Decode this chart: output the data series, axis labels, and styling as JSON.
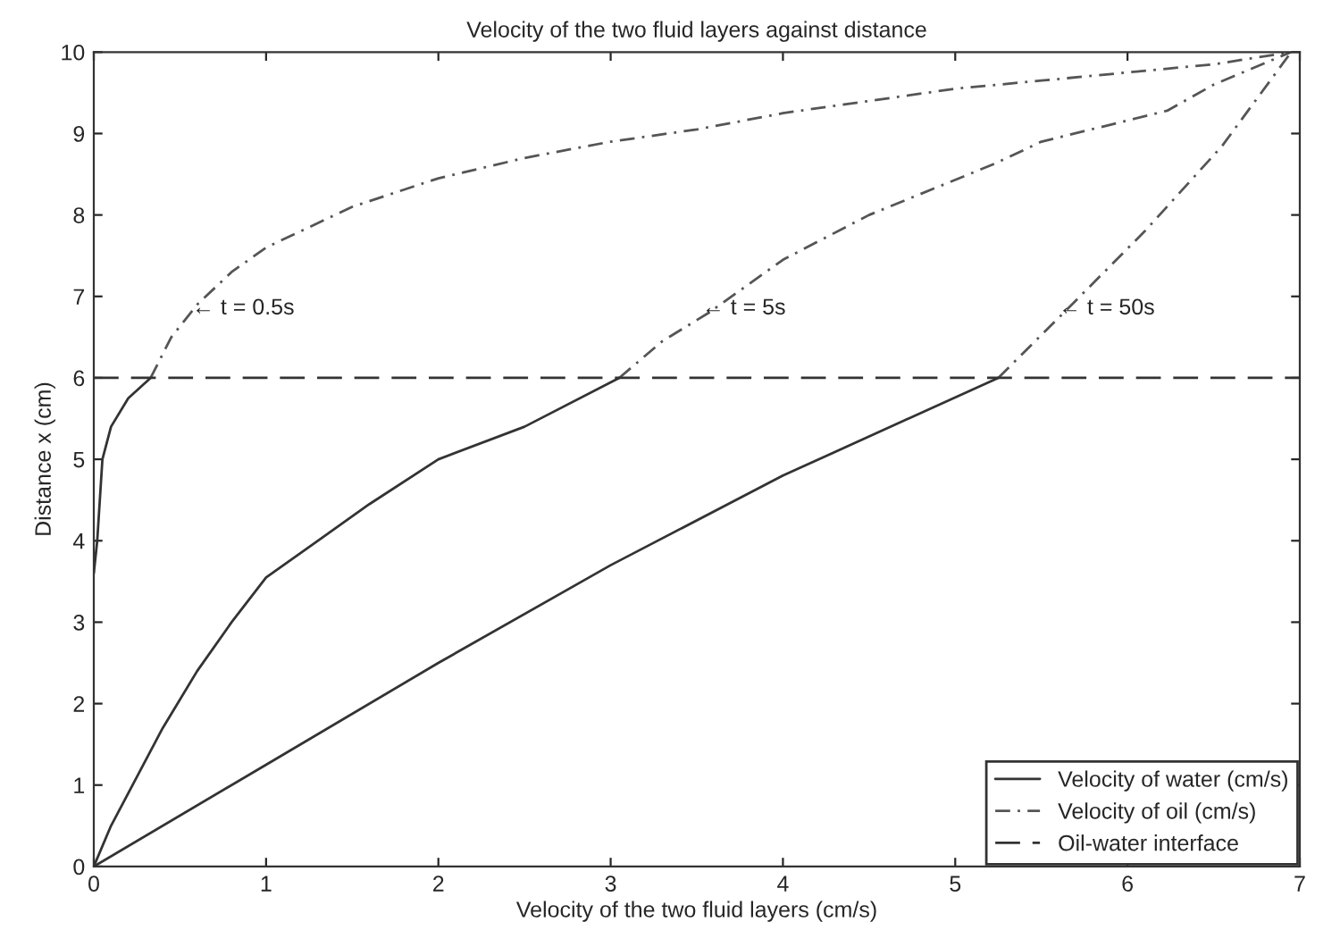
{
  "chart_data": {
    "type": "line",
    "title": "Velocity of the two fluid layers against distance",
    "xlabel": "Velocity of the two fluid layers (cm/s)",
    "ylabel": "Distance x (cm)",
    "series": [
      {
        "name": "Velocity of water (cm/s)",
        "color": "#333333",
        "line_style": "solid",
        "x": [
          0,
          0.02,
          0.05,
          0.1,
          0.2,
          0.33
        ],
        "values": [
          3.6,
          4.0,
          5.0,
          5.4,
          5.75,
          6.0
        ]
      },
      {
        "color": "#333333",
        "line_style": "solid",
        "x": [
          0,
          0.1,
          0.25,
          0.4,
          0.6,
          0.8,
          1,
          1.3,
          1.6,
          2,
          2.5,
          3.05
        ],
        "values": [
          0,
          0.5,
          1.1,
          1.7,
          2.4,
          3.0,
          3.55,
          4.0,
          4.45,
          5.0,
          5.4,
          6.0
        ]
      },
      {
        "color": "#333333",
        "line_style": "solid",
        "x": [
          0,
          1,
          2,
          3,
          4,
          5.25
        ],
        "values": [
          0,
          1.25,
          2.5,
          3.7,
          4.8,
          6.0
        ]
      },
      {
        "name": "Velocity of oil (cm/s)",
        "color": "#555555",
        "line_style": "dashdot",
        "x": [
          0.33,
          0.45,
          0.6,
          0.8,
          1,
          1.5,
          2,
          2.5,
          3,
          3.5,
          4,
          4.5,
          5,
          5.5,
          6,
          6.5,
          6.95
        ],
        "values": [
          6.0,
          6.5,
          6.9,
          7.3,
          7.6,
          8.1,
          8.45,
          8.7,
          8.9,
          9.05,
          9.25,
          9.4,
          9.55,
          9.65,
          9.75,
          9.85,
          10.0
        ]
      },
      {
        "color": "#555555",
        "line_style": "dashdot",
        "x": [
          3.05,
          3.3,
          3.57,
          4,
          4.5,
          5.23,
          5.5,
          6.23,
          6.5,
          6.95
        ],
        "values": [
          6.0,
          6.45,
          6.8,
          7.45,
          8.0,
          8.63,
          8.9,
          9.28,
          9.6,
          10.0
        ]
      },
      {
        "color": "#555555",
        "line_style": "dashdot",
        "x": [
          5.25,
          5.63,
          6.1,
          6.55,
          6.95
        ],
        "values": [
          6.0,
          6.8,
          7.8,
          8.85,
          10.0
        ]
      }
    ],
    "ref_lines": [
      {
        "axis": "y",
        "value": 6,
        "label": "Oil-water interface",
        "color": "#333333",
        "line_style": "dashed"
      }
    ],
    "annotations": [
      {
        "text": "← t = 0.5s",
        "x": 0.57,
        "y": 6.85
      },
      {
        "text": "← t = 5s",
        "x": 3.53,
        "y": 6.85
      },
      {
        "text": "← t = 50s",
        "x": 5.6,
        "y": 6.85
      }
    ],
    "xlim": [
      0,
      7
    ],
    "ylim": [
      0,
      10
    ],
    "xticks": [
      0,
      1,
      2,
      3,
      4,
      5,
      6,
      7
    ],
    "yticks": [
      0,
      1,
      2,
      3,
      4,
      5,
      6,
      7,
      8,
      9,
      10
    ],
    "grid": false,
    "legend": "bottom right",
    "marker": "none"
  }
}
